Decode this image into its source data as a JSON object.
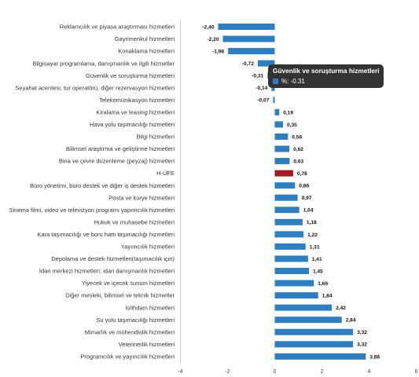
{
  "chart_data": {
    "type": "bar",
    "orientation": "horizontal",
    "categories": [
      "Reklamcılık ve piyasa araştırması hizmetleri",
      "Gayrimenkul hizmetleri",
      "Konaklama hizmetleri",
      "Bilgisayar programlama, danışmanlık ve ilgili hizmetler",
      "Güvenlik ve soruşturma hizmetleri",
      "Seyahat acentesi, tur operatörü, diğer rezervasyon hizmetleri",
      "Telekomünikasyon hizmetleri",
      "Kiralama ve leasing hizmetleri",
      "Hava yolu taşımacılığı hizmetleri",
      "Bilgi hizmetleri",
      "Bilimsel araştırma ve geliştirme hizmetleri",
      "Bina ve çevre düzenleme (peyzaj) hizmetleri",
      "H-ÜFE",
      "Büro yönetimi, büro destek ve diğer iş destek hizmetleri",
      "Posta ve kurye hizmetleri",
      "Sinema filmi, video ve televizyon programı yapımcılık hizmetleri",
      "Hukuk ve muhasebe hizmetleri",
      "Kara taşımacılığı ve boru hattı taşımacılığı hizmetleri",
      "Yayımcılık hizmetleri",
      "Depolama ve destek hizmetleri(taşımacılık için)",
      "İdari merkezi hizmetleri; idari danışmanlık hizmetleri",
      "Yiyecek ve içecek sunum hizmetleri",
      "Diğer mesleki, bilimsel ve teknik hizmetler",
      "İstihdam hizmetleri",
      "Su yolu taşımacılığı hizmetleri",
      "Mimarlık ve mühendislik hizmetleri",
      "Veterinerlik hizmetleri",
      "Programcılık ve yayıncılık hizmetleri"
    ],
    "values": [
      -2.4,
      -2.2,
      -1.98,
      -0.72,
      -0.31,
      -0.14,
      -0.07,
      0.19,
      0.35,
      0.56,
      0.62,
      0.63,
      0.78,
      0.86,
      0.97,
      1.04,
      1.18,
      1.22,
      1.31,
      1.41,
      1.45,
      1.66,
      1.84,
      2.42,
      2.84,
      3.32,
      3.32,
      3.86
    ],
    "value_labels": [
      "-2,40",
      "-2,20",
      "-1,98",
      "-0,72",
      "-0,31",
      "-0,14",
      "-0,07",
      "0,19",
      "0,35",
      "0,56",
      "0,62",
      "0,63",
      "0,78",
      "0,86",
      "0,97",
      "1,04",
      "1,18",
      "1,22",
      "1,31",
      "1,41",
      "1,45",
      "1,66",
      "1,84",
      "2,42",
      "2,84",
      "3,32",
      "3,32",
      "3,86"
    ],
    "highlight_index": 12,
    "xlim": [
      -4,
      6
    ],
    "x_ticks": [
      -4,
      -2,
      0,
      2,
      4,
      6
    ],
    "grid": false,
    "colors": {
      "bar": "#2f7ebf",
      "highlight": "#a5181f"
    },
    "tooltip": {
      "title": "Güvenlik ve soruşturma hizmetleri",
      "series_label": "%",
      "value": "-0.31",
      "swatch_color": "#2f7ebf"
    }
  }
}
